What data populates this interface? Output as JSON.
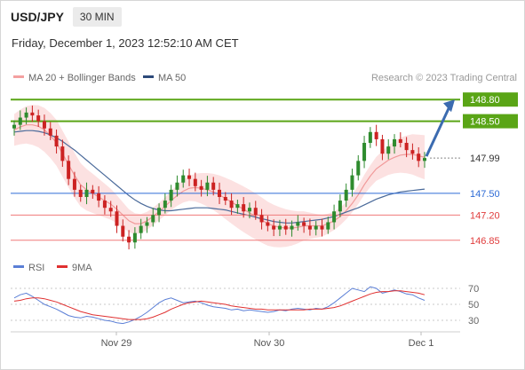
{
  "header": {
    "symbol": "USD/JPY",
    "timeframe": "30 MIN"
  },
  "timestamp": "Friday, December 1, 2023 12:52:10 AM CET",
  "colors": {
    "up_candle": "#2e8b2e",
    "down_candle": "#cc2222",
    "bollinger": "#f4b6b6",
    "ma50": "#4a6a9a",
    "resistance": "#5aa516",
    "support": "#2d6bd6",
    "support_light": "#f07a7a",
    "arrow": "#3b6bb0",
    "rsi": "#5b7fd6",
    "rsi_ma": "#e03030"
  },
  "chart_data": [
    {
      "type": "candlestick",
      "legend": [
        {
          "name": "MA 20 + Bollinger Bands",
          "color": "#f4a0a0"
        },
        {
          "name": "MA 50",
          "color": "#2d4a7a"
        }
      ],
      "source": "Research © 2023 Trading Central",
      "x_ticks": [
        "Nov 29",
        "Nov 30",
        "Dec 1"
      ],
      "y_range": [
        146.7,
        148.95
      ],
      "levels": [
        {
          "label": "148.80",
          "value": 148.8,
          "kind": "resistance"
        },
        {
          "label": "148.50",
          "value": 148.5,
          "kind": "resistance"
        },
        {
          "label": "147.99",
          "value": 147.99,
          "kind": "last"
        },
        {
          "label": "147.50",
          "value": 147.5,
          "kind": "support"
        },
        {
          "label": "147.20",
          "value": 147.2,
          "kind": "support_light"
        },
        {
          "label": "146.85",
          "value": 146.85,
          "kind": "support_light"
        }
      ],
      "close_series": [
        148.45,
        148.55,
        148.62,
        148.58,
        148.5,
        148.4,
        148.3,
        148.15,
        147.95,
        147.7,
        147.55,
        147.45,
        147.55,
        147.5,
        147.4,
        147.3,
        147.25,
        147.05,
        146.9,
        146.82,
        146.95,
        147.05,
        147.1,
        147.2,
        147.3,
        147.4,
        147.55,
        147.65,
        147.75,
        147.7,
        147.6,
        147.55,
        147.65,
        147.55,
        147.45,
        147.4,
        147.3,
        147.35,
        147.25,
        147.3,
        147.2,
        147.1,
        147.05,
        147.0,
        147.05,
        147.0,
        147.05,
        147.1,
        147.05,
        147.0,
        147.05,
        147.0,
        147.1,
        147.25,
        147.4,
        147.55,
        147.75,
        147.95,
        148.2,
        148.35,
        148.25,
        148.05,
        148.15,
        148.25,
        148.2,
        148.1,
        148.05,
        147.95,
        147.99
      ],
      "ma20_series": [
        148.38,
        148.42,
        148.45,
        148.45,
        148.43,
        148.38,
        148.3,
        148.2,
        148.05,
        147.9,
        147.75,
        147.62,
        147.55,
        147.5,
        147.45,
        147.4,
        147.35,
        147.28,
        147.2,
        147.12,
        147.08,
        147.08,
        147.12,
        147.18,
        147.25,
        147.32,
        147.4,
        147.47,
        147.53,
        147.57,
        147.58,
        147.57,
        147.55,
        147.52,
        147.48,
        147.43,
        147.38,
        147.33,
        147.28,
        147.23,
        147.18,
        147.13,
        147.08,
        147.05,
        147.03,
        147.02,
        147.02,
        147.03,
        147.05,
        147.05,
        147.05,
        147.05,
        147.08,
        147.12,
        147.18,
        147.26,
        147.36,
        147.48,
        147.62,
        147.74,
        147.84,
        147.9,
        147.96,
        148.0,
        148.03,
        148.04,
        148.04,
        148.02,
        148.0
      ],
      "ma50_series": [
        148.35,
        148.36,
        148.37,
        148.37,
        148.36,
        148.34,
        148.31,
        148.27,
        148.22,
        148.16,
        148.1,
        148.03,
        147.96,
        147.89,
        147.82,
        147.75,
        147.68,
        147.61,
        147.54,
        147.47,
        147.41,
        147.36,
        147.32,
        147.29,
        147.27,
        147.26,
        147.26,
        147.27,
        147.28,
        147.29,
        147.3,
        147.3,
        147.3,
        147.29,
        147.28,
        147.27,
        147.25,
        147.23,
        147.21,
        147.19,
        147.17,
        147.15,
        147.13,
        147.11,
        147.1,
        147.09,
        147.09,
        147.1,
        147.11,
        147.12,
        147.13,
        147.14,
        147.16,
        147.18,
        147.21,
        147.24,
        147.27,
        147.3,
        147.34,
        147.38,
        147.42,
        147.45,
        147.48,
        147.5,
        147.52,
        147.53,
        147.54,
        147.55,
        147.56
      ]
    },
    {
      "type": "line",
      "legend": [
        {
          "name": "RSI",
          "color": "#5b7fd6"
        },
        {
          "name": "9MA",
          "color": "#e03030"
        }
      ],
      "y_ticks": [
        "70",
        "50",
        "30"
      ],
      "y_range": [
        20,
        80
      ],
      "series": [
        {
          "name": "RSI",
          "values": [
            58,
            62,
            64,
            60,
            55,
            50,
            47,
            44,
            40,
            36,
            34,
            33,
            35,
            34,
            32,
            30,
            29,
            27,
            26,
            28,
            31,
            35,
            40,
            46,
            52,
            56,
            58,
            55,
            52,
            53,
            54,
            52,
            49,
            47,
            46,
            45,
            43,
            44,
            42,
            43,
            42,
            41,
            40,
            41,
            43,
            42,
            44,
            45,
            44,
            43,
            45,
            44,
            47,
            52,
            58,
            64,
            70,
            68,
            66,
            72,
            70,
            64,
            66,
            68,
            66,
            63,
            62,
            58,
            55
          ]
        },
        {
          "name": "9MA",
          "values": [
            54,
            55,
            57,
            58,
            58,
            57,
            55,
            53,
            50,
            47,
            44,
            41,
            39,
            37,
            36,
            35,
            34,
            33,
            32,
            31,
            31,
            31,
            32,
            34,
            37,
            40,
            44,
            47,
            50,
            52,
            53,
            54,
            53,
            52,
            51,
            50,
            48,
            47,
            46,
            45,
            44,
            44,
            43,
            43,
            43,
            43,
            43,
            43,
            43,
            44,
            44,
            44,
            45,
            46,
            48,
            51,
            54,
            57,
            60,
            63,
            65,
            66,
            66,
            67,
            67,
            66,
            65,
            64,
            62
          ]
        }
      ]
    }
  ]
}
